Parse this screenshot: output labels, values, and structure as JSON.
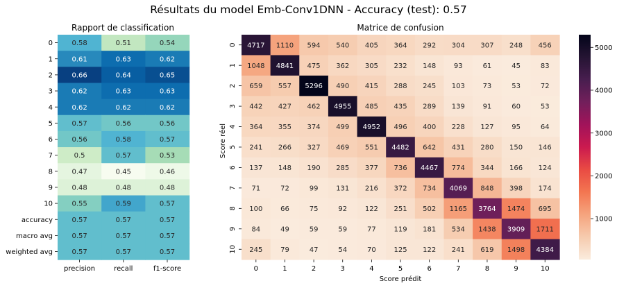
{
  "suptitle": "Résultats du model Emb-Conv1DNN - Accuracy (test): 0.57",
  "chart_data": [
    {
      "type": "heatmap",
      "title": "Rapport de classification",
      "columns": [
        "precision",
        "recall",
        "f1-score"
      ],
      "rows": [
        "0",
        "1",
        "2",
        "3",
        "4",
        "5",
        "6",
        "7",
        "8",
        "9",
        "10",
        "accuracy",
        "macro avg",
        "weighted avg"
      ],
      "values": [
        [
          0.58,
          0.51,
          0.54
        ],
        [
          0.61,
          0.63,
          0.62
        ],
        [
          0.66,
          0.64,
          0.65
        ],
        [
          0.62,
          0.63,
          0.63
        ],
        [
          0.62,
          0.62,
          0.62
        ],
        [
          0.57,
          0.56,
          0.56
        ],
        [
          0.56,
          0.58,
          0.57
        ],
        [
          0.5,
          0.57,
          0.53
        ],
        [
          0.47,
          0.45,
          0.46
        ],
        [
          0.48,
          0.48,
          0.48
        ],
        [
          0.55,
          0.59,
          0.57
        ],
        [
          0.57,
          0.57,
          0.57
        ],
        [
          0.57,
          0.57,
          0.57
        ],
        [
          0.57,
          0.57,
          0.57
        ]
      ],
      "colormap": "GnBu",
      "colorbar": false
    },
    {
      "type": "heatmap",
      "title": "Matrice de confusion",
      "xlabel": "Score prédit",
      "ylabel": "Score réel",
      "x_categories": [
        "0",
        "1",
        "2",
        "3",
        "4",
        "5",
        "6",
        "7",
        "8",
        "9",
        "10"
      ],
      "y_categories": [
        "0",
        "1",
        "2",
        "3",
        "4",
        "5",
        "6",
        "7",
        "8",
        "9",
        "10"
      ],
      "values": [
        [
          4717,
          1110,
          594,
          540,
          405,
          364,
          292,
          304,
          307,
          248,
          456
        ],
        [
          1048,
          4841,
          475,
          362,
          305,
          232,
          148,
          93,
          61,
          45,
          83
        ],
        [
          659,
          557,
          5296,
          490,
          415,
          288,
          245,
          103,
          73,
          53,
          72
        ],
        [
          442,
          427,
          462,
          4955,
          485,
          435,
          289,
          139,
          91,
          60,
          53
        ],
        [
          364,
          355,
          374,
          499,
          4952,
          496,
          400,
          228,
          127,
          95,
          64
        ],
        [
          241,
          266,
          327,
          469,
          551,
          4482,
          642,
          431,
          280,
          150,
          146
        ],
        [
          137,
          148,
          190,
          285,
          377,
          736,
          4467,
          774,
          344,
          166,
          124
        ],
        [
          71,
          72,
          99,
          131,
          216,
          372,
          734,
          4069,
          848,
          398,
          174
        ],
        [
          100,
          66,
          75,
          92,
          122,
          251,
          502,
          1165,
          3764,
          1474,
          695
        ],
        [
          84,
          49,
          59,
          59,
          77,
          119,
          181,
          534,
          1438,
          3909,
          1711
        ],
        [
          245,
          79,
          47,
          54,
          70,
          125,
          122,
          241,
          619,
          1498,
          4384
        ]
      ],
      "colormap": "rocket_r",
      "colorbar": {
        "range": [
          45,
          5296
        ],
        "ticks": [
          1000,
          2000,
          3000,
          4000,
          5000
        ]
      }
    }
  ]
}
